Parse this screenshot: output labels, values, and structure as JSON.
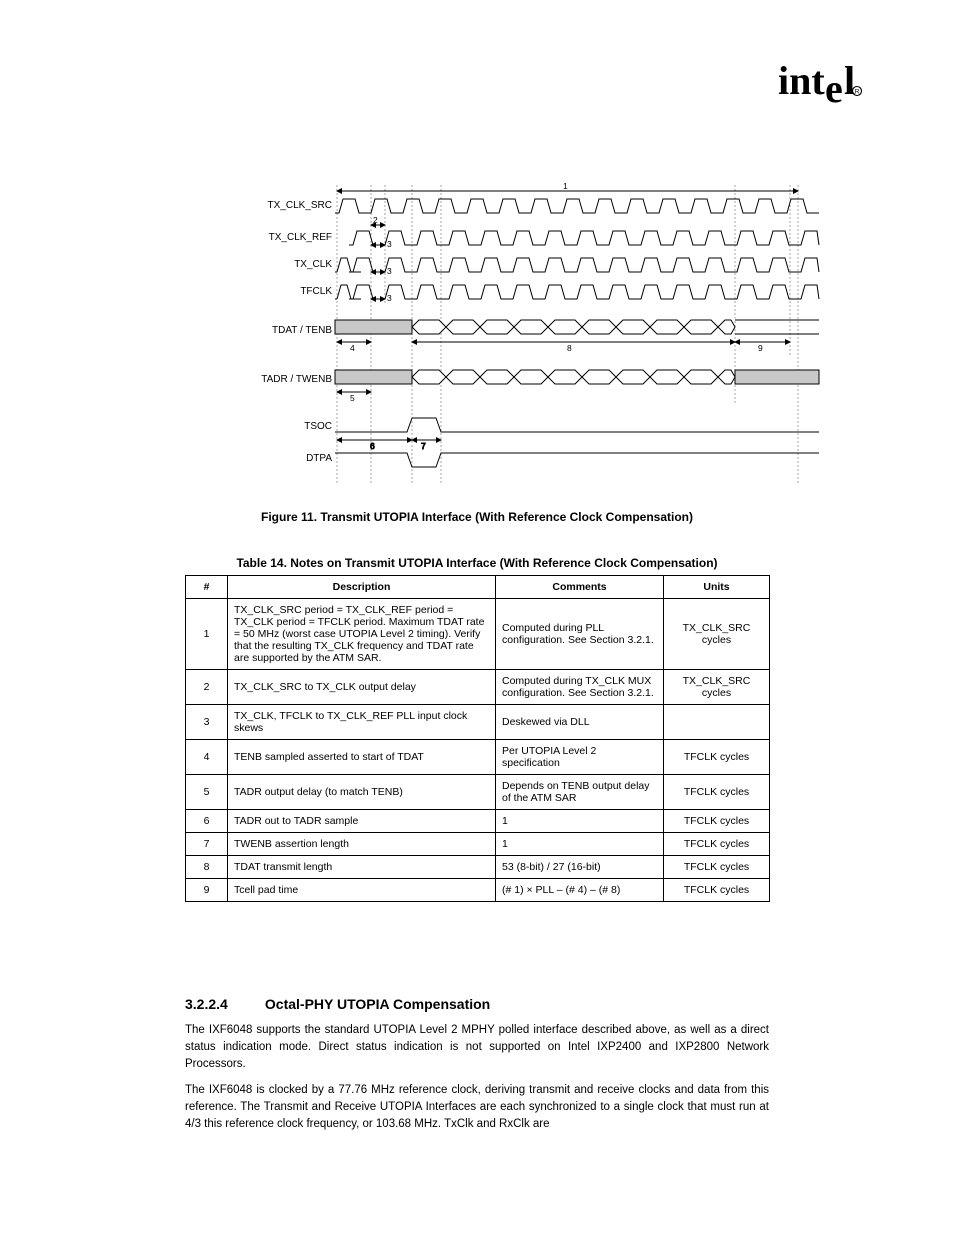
{
  "logo_alt": "intel",
  "signals": {
    "s0": "TX_CLK_SRC",
    "s1": "TX_CLK_REF",
    "s2": "TX_CLK",
    "s3": "TFCLK",
    "s4": "TDAT / TENB",
    "s5": "TADR / TWENB",
    "s6": "TSOC",
    "s7": "DTPA"
  },
  "dimnotes": {
    "d1": "1",
    "d2": "2",
    "d4": "4",
    "d5": "5",
    "d6": "6",
    "d7": "7"
  },
  "dimnotes3": {
    "a": "3",
    "b": "3",
    "c": "3"
  },
  "figcap": "Figure 11.  Transmit UTOPIA Interface (With Reference Clock Compensation)",
  "tablecap": "Table 14.  Notes on Transmit UTOPIA Interface (With Reference Clock Compensation)",
  "table": {
    "headers": {
      "num": "#",
      "desc": "Description",
      "comm": "Comments",
      "unit": "Units"
    },
    "rows": [
      {
        "num": "1",
        "desc": "TX_CLK_SRC period = TX_CLK_REF period = TX_CLK period = TFCLK period. Maximum TDAT rate = 50 MHz (worst case UTOPIA Level 2 timing). Verify that the resulting TX_CLK frequency and TDAT rate are supported by the ATM SAR.",
        "comm": "Computed during PLL configuration. See Section 3.2.1.",
        "unit": "TX_CLK_SRC cycles"
      },
      {
        "num": "2",
        "desc": "TX_CLK_SRC to TX_CLK output delay",
        "comm": "Computed during TX_CLK MUX configuration. See Section 3.2.1.",
        "unit": "TX_CLK_SRC cycles"
      },
      {
        "num": "3",
        "desc": "TX_CLK, TFCLK to TX_CLK_REF PLL input clock skews",
        "comm": "Deskewed via DLL",
        "unit": ""
      },
      {
        "num": "4",
        "desc": "TENB sampled asserted to start of TDAT",
        "comm": "Per UTOPIA Level 2 specification",
        "unit": "TFCLK cycles"
      },
      {
        "num": "5",
        "desc": "TADR output delay (to match TENB)",
        "comm": "Depends on TENB output delay of the ATM SAR",
        "unit": "TFCLK cycles"
      },
      {
        "num": "6",
        "desc": "TADR out to TADR sample",
        "comm": "1",
        "unit": "TFCLK cycles"
      },
      {
        "num": "7",
        "desc": "TWENB assertion length",
        "comm": "1",
        "unit": "TFCLK cycles"
      },
      {
        "num": "8",
        "desc": "TDAT transmit length",
        "comm": "53 (8-bit) / 27 (16-bit)",
        "unit": "TFCLK cycles"
      },
      {
        "num": "9",
        "desc": "Tcell pad time",
        "comm": "(# 1) × PLL – (# 4) – (# 8)",
        "unit": "TFCLK cycles"
      }
    ]
  },
  "section": {
    "num": "3.2.2.4",
    "title": "Octal-PHY UTOPIA Compensation"
  },
  "para1": "The IXF6048 supports the standard UTOPIA Level 2 MPHY polled interface described above, as well as a direct status indication mode. Direct status indication is not supported on Intel IXP2400 and IXP2800 Network Processors.",
  "para2": "The IXF6048 is clocked by a 77.76 MHz reference clock, deriving transmit and receive clocks and data from this reference. The Transmit and Receive UTOPIA Interfaces are each synchronized to a single clock that must run at 4/3 this reference clock frequency, or 103.68 MHz. TxClk and RxClk are"
}
